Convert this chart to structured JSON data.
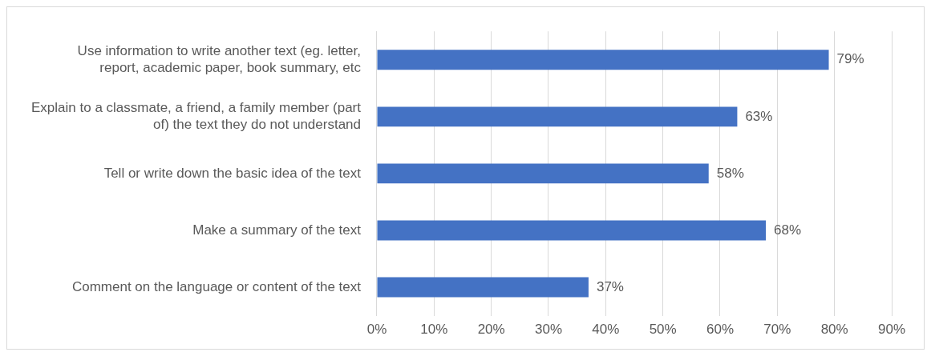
{
  "chart_data": {
    "type": "bar",
    "orientation": "horizontal",
    "categories": [
      "Use information to write another text (eg. letter, report, academic paper, book summary, etc",
      "Explain to a classmate, a friend, a family member (part of) the text they do not understand",
      "Tell or write down the basic idea of the text",
      "Make a summary of the text",
      "Comment on the language or content of the text"
    ],
    "values": [
      79,
      63,
      58,
      68,
      37
    ],
    "value_labels": [
      "79%",
      "63%",
      "58%",
      "68%",
      "37%"
    ],
    "color": "#4472c4",
    "xlim": [
      0,
      90
    ],
    "xticks": [
      {
        "value": 0,
        "label": "0%"
      },
      {
        "value": 10,
        "label": "10%"
      },
      {
        "value": 20,
        "label": "20%"
      },
      {
        "value": 30,
        "label": "30%"
      },
      {
        "value": 40,
        "label": "40%"
      },
      {
        "value": 50,
        "label": "50%"
      },
      {
        "value": 60,
        "label": "60%"
      },
      {
        "value": 70,
        "label": "70%"
      },
      {
        "value": 80,
        "label": "80%"
      },
      {
        "value": 90,
        "label": "90%"
      }
    ],
    "grid": "x",
    "legend": false
  }
}
